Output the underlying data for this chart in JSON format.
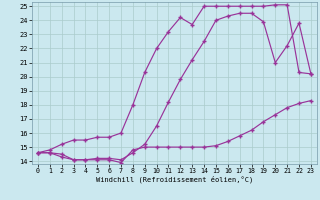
{
  "xlabel": "Windchill (Refroidissement éolien,°C)",
  "xlim": [
    -0.5,
    23.5
  ],
  "ylim": [
    13.8,
    25.3
  ],
  "xticks": [
    0,
    1,
    2,
    3,
    4,
    5,
    6,
    7,
    8,
    9,
    10,
    11,
    12,
    13,
    14,
    15,
    16,
    17,
    18,
    19,
    20,
    21,
    22,
    23
  ],
  "yticks": [
    14,
    15,
    16,
    17,
    18,
    19,
    20,
    21,
    22,
    23,
    24,
    25
  ],
  "bg_color": "#cbe8ef",
  "line_color": "#993399",
  "grid_color": "#aacccc",
  "curve1_x": [
    0,
    1,
    2,
    3,
    4,
    5,
    6,
    7,
    8,
    9,
    10,
    11,
    12,
    13,
    14,
    15,
    16,
    17,
    18,
    19,
    20,
    21,
    22,
    23
  ],
  "curve1_y": [
    14.6,
    14.6,
    14.5,
    14.1,
    14.1,
    14.1,
    14.1,
    13.9,
    14.8,
    15.0,
    15.0,
    15.0,
    15.0,
    15.0,
    15.0,
    15.1,
    15.4,
    15.8,
    16.2,
    16.8,
    17.3,
    17.8,
    18.1,
    18.3
  ],
  "curve2_x": [
    0,
    1,
    2,
    3,
    4,
    5,
    6,
    7,
    8,
    9,
    10,
    11,
    12,
    13,
    14,
    15,
    16,
    17,
    18,
    19,
    20,
    21,
    22,
    23
  ],
  "curve2_y": [
    14.6,
    14.6,
    14.3,
    14.1,
    14.1,
    14.2,
    14.2,
    14.1,
    14.6,
    15.2,
    16.5,
    18.2,
    19.8,
    21.2,
    22.5,
    24.0,
    24.3,
    24.5,
    24.5,
    23.9,
    21.0,
    22.2,
    23.8,
    20.2
  ],
  "curve3_x": [
    0,
    1,
    2,
    3,
    4,
    5,
    6,
    7,
    8,
    9,
    10,
    11,
    12,
    13,
    14,
    15,
    16,
    17,
    18,
    19,
    20,
    21,
    22,
    23
  ],
  "curve3_y": [
    14.6,
    14.8,
    15.2,
    15.5,
    15.5,
    15.7,
    15.7,
    16.0,
    18.0,
    20.3,
    22.0,
    23.2,
    24.2,
    23.7,
    25.0,
    25.0,
    25.0,
    25.0,
    25.0,
    25.0,
    25.1,
    25.1,
    20.3,
    20.2
  ]
}
